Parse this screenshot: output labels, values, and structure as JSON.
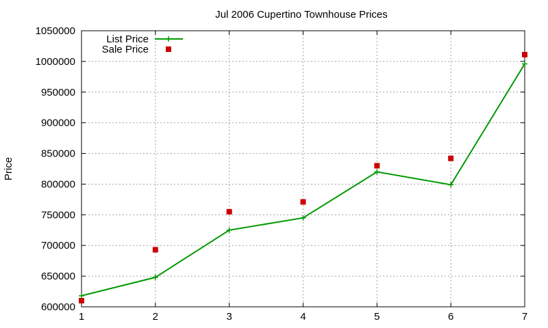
{
  "chart_data": {
    "type": "line",
    "title": "Jul 2006 Cupertino Townhouse Prices",
    "xlabel": "",
    "ylabel": "Price",
    "x": [
      1,
      2,
      3,
      4,
      5,
      6,
      7
    ],
    "xlim": [
      1,
      7
    ],
    "ylim": [
      600000,
      1050000
    ],
    "x_ticks": [
      "1",
      "2",
      "3",
      "4",
      "5",
      "6",
      "7"
    ],
    "y_ticks": [
      "600000",
      "650000",
      "700000",
      "750000",
      "800000",
      "850000",
      "900000",
      "950000",
      "1000000",
      "1050000"
    ],
    "grid": true,
    "legend_position": "top-left",
    "series": [
      {
        "name": "List Price",
        "style": "line-with-plus-markers",
        "color": "#009900",
        "values": [
          618000,
          648000,
          725000,
          745000,
          820000,
          799000,
          996000
        ]
      },
      {
        "name": "Sale Price",
        "style": "square-markers",
        "color": "#cc0000",
        "values": [
          610000,
          693000,
          755000,
          771000,
          830000,
          842000,
          1011000
        ]
      }
    ]
  }
}
